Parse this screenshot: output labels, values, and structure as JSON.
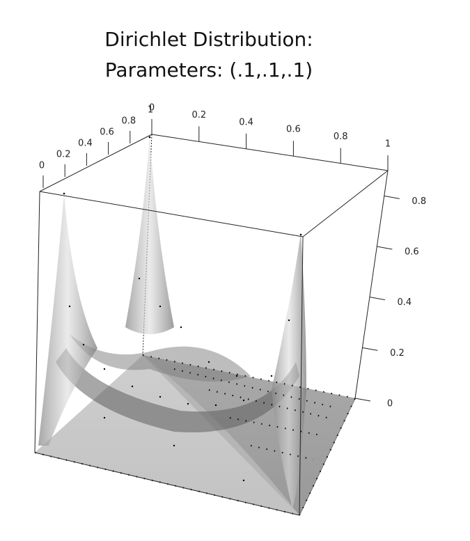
{
  "chart_data": {
    "type": "surface3d",
    "title": "Dirichlet Distribution:",
    "subtitle": "Parameters: (.1,.1,.1)",
    "xlim": [
      0,
      1
    ],
    "xticks": [
      0,
      0.2,
      0.4,
      0.6,
      0.8,
      1
    ],
    "ylim": [
      0,
      1
    ],
    "yticks": [
      0,
      0.2,
      0.4,
      0.6,
      0.8,
      1
    ],
    "zlim": [
      0,
      0.9
    ],
    "zticks": [
      0,
      0.2,
      0.4,
      0.6,
      0.8
    ],
    "color": "#9a9a9a"
  }
}
